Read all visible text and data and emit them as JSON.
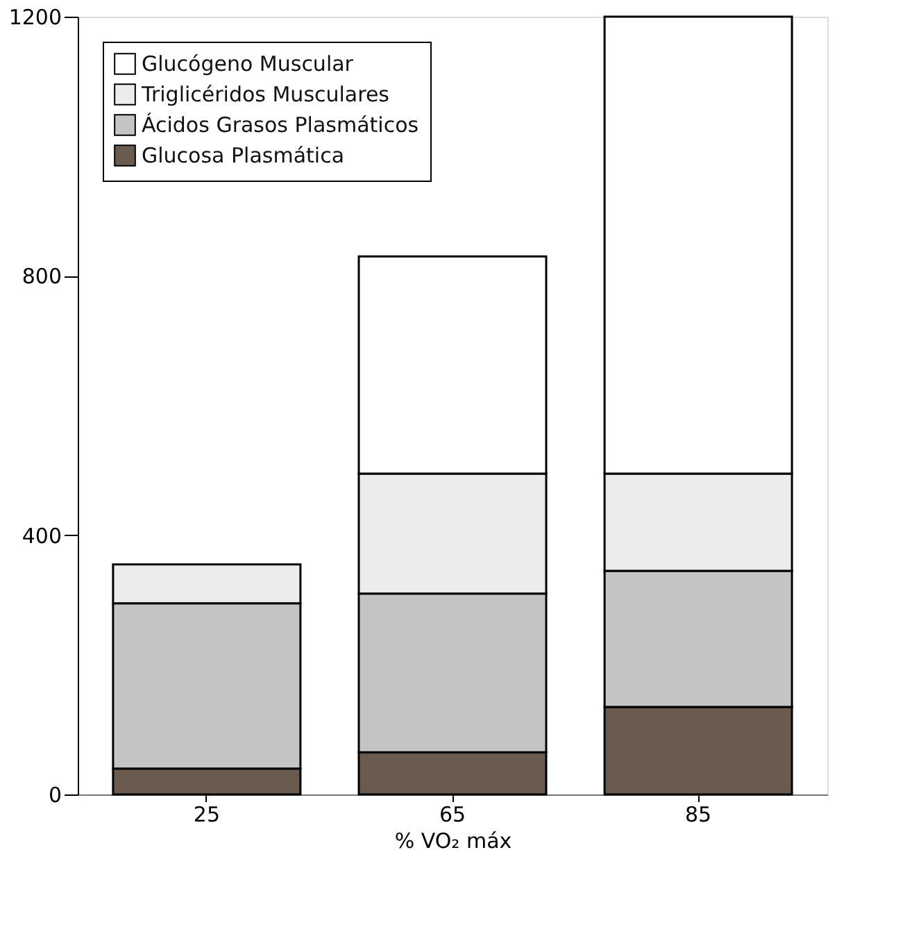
{
  "chart_data": {
    "type": "bar",
    "stacked": true,
    "xlabel": "% VO₂ máx",
    "categories": [
      "25",
      "65",
      "85"
    ],
    "series": [
      {
        "name": "Glucosa Plasmática",
        "color": "#6b5b4f",
        "values": [
          40,
          65,
          135
        ]
      },
      {
        "name": "Ácidos Grasos Plasmáticos",
        "color": "#c4c4c4",
        "values": [
          255,
          245,
          210
        ]
      },
      {
        "name": "Triglicéridos Musculares",
        "color": "#ececec",
        "values": [
          60,
          185,
          150
        ]
      },
      {
        "name": "Glucógeno Muscular",
        "color": "#ffffff",
        "values": [
          null,
          335,
          705
        ]
      }
    ],
    "ylim": [
      0,
      1200
    ],
    "yticks": [
      0,
      400,
      800,
      1200
    ],
    "grid": false,
    "legend": "top left"
  }
}
